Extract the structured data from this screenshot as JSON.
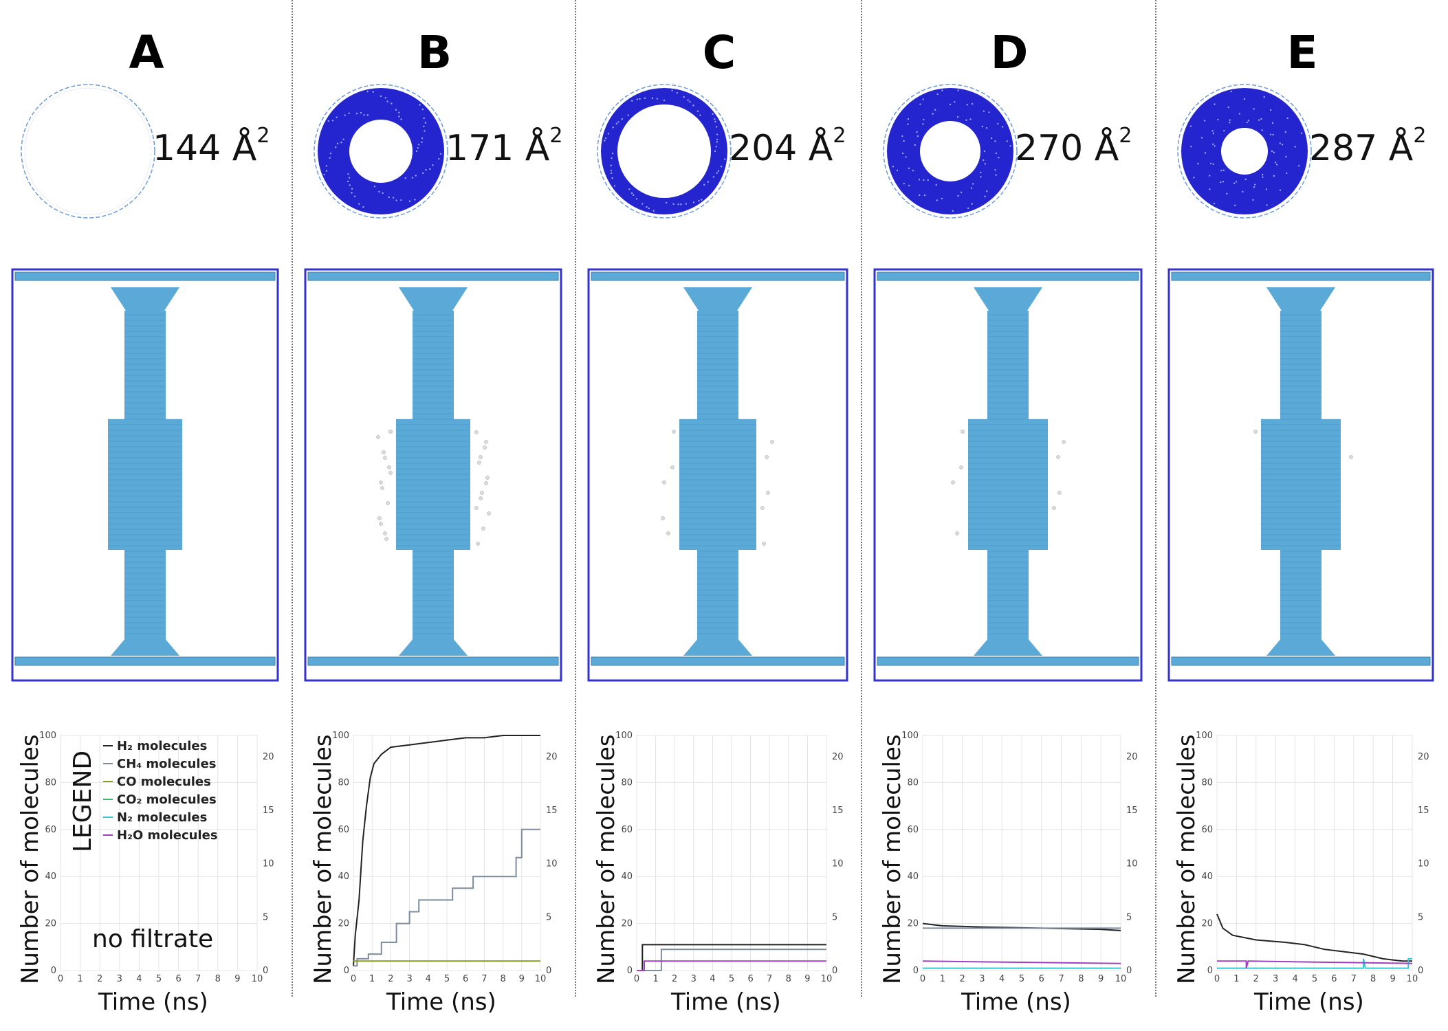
{
  "panels": [
    {
      "letter": "A",
      "area": "144 Å",
      "area_sup": "2"
    },
    {
      "letter": "B",
      "area": "171 Å",
      "area_sup": "2"
    },
    {
      "letter": "C",
      "area": "204 Å",
      "area_sup": "2"
    },
    {
      "letter": "D",
      "area": "270 Å",
      "area_sup": "2"
    },
    {
      "letter": "E",
      "area": "287 Å",
      "area_sup": "2"
    }
  ],
  "axes": {
    "ylabel": "Number of molecules",
    "xlabel": "Time (ns)",
    "left_ticks": [
      "0",
      "20",
      "40",
      "60",
      "80",
      "100"
    ],
    "right_ticks": [
      "0",
      "5",
      "10",
      "15",
      "20"
    ],
    "x_ticks": [
      "0",
      "1",
      "2",
      "3",
      "4",
      "5",
      "6",
      "7",
      "8",
      "9",
      "10"
    ]
  },
  "legend": {
    "title": "LEGEND",
    "items": [
      {
        "label": "H₂ molecules",
        "color": "#222222"
      },
      {
        "label": "CH₄ molecules",
        "color": "#7f8c9d"
      },
      {
        "label": "CO molecules",
        "color": "#8a9a1a"
      },
      {
        "label": "CO₂ molecules",
        "color": "#3bb86a"
      },
      {
        "label": "N₂ molecules",
        "color": "#35c6d6"
      },
      {
        "label": "H₂O molecules",
        "color": "#a040c0"
      }
    ]
  },
  "annotation": "no filtrate",
  "colors": {
    "membrane": "#2525d0",
    "tube": "#5aa9d6",
    "box": "#3333cc"
  },
  "chart_data": [
    {
      "type": "line",
      "panel": "A",
      "xlim": [
        0,
        10
      ],
      "ylim": [
        0,
        100
      ],
      "y2lim": [
        0,
        22
      ],
      "series": []
    },
    {
      "type": "line",
      "panel": "B",
      "xlim": [
        0,
        10
      ],
      "ylim": [
        0,
        100
      ],
      "y2lim": [
        0,
        22
      ],
      "series": [
        {
          "name": "H₂ molecules",
          "points": [
            [
              0,
              2
            ],
            [
              0.1,
              15
            ],
            [
              0.3,
              30
            ],
            [
              0.5,
              55
            ],
            [
              0.7,
              70
            ],
            [
              0.9,
              82
            ],
            [
              1.1,
              88
            ],
            [
              1.5,
              92
            ],
            [
              2,
              95
            ],
            [
              3,
              96
            ],
            [
              4,
              97
            ],
            [
              5,
              98
            ],
            [
              6,
              99
            ],
            [
              7,
              99
            ],
            [
              8,
              100
            ],
            [
              10,
              100
            ]
          ]
        },
        {
          "name": "CH₄ molecules",
          "points": [
            [
              0,
              2
            ],
            [
              0.2,
              2
            ],
            [
              0.2,
              5
            ],
            [
              0.8,
              5
            ],
            [
              0.8,
              7
            ],
            [
              1.5,
              7
            ],
            [
              1.5,
              12
            ],
            [
              2.3,
              12
            ],
            [
              2.3,
              20
            ],
            [
              3,
              20
            ],
            [
              3,
              25
            ],
            [
              3.5,
              25
            ],
            [
              3.5,
              30
            ],
            [
              5.3,
              30
            ],
            [
              5.3,
              35
            ],
            [
              6.4,
              35
            ],
            [
              6.4,
              40
            ],
            [
              8.7,
              40
            ],
            [
              8.7,
              48
            ],
            [
              9,
              48
            ],
            [
              9,
              60
            ],
            [
              10,
              60
            ]
          ]
        },
        {
          "name": "CO molecules",
          "points": [
            [
              0,
              4
            ],
            [
              10,
              4
            ]
          ]
        }
      ]
    },
    {
      "type": "line",
      "panel": "C",
      "xlim": [
        0,
        10
      ],
      "ylim": [
        0,
        100
      ],
      "y2lim": [
        0,
        22
      ],
      "series": [
        {
          "name": "H₂ molecules",
          "points": [
            [
              0,
              0
            ],
            [
              0.3,
              0
            ],
            [
              0.3,
              11
            ],
            [
              10,
              11
            ]
          ]
        },
        {
          "name": "CH₄ molecules",
          "points": [
            [
              0,
              0
            ],
            [
              1.3,
              0
            ],
            [
              1.3,
              9
            ],
            [
              10,
              9
            ]
          ]
        },
        {
          "name": "H₂O molecules",
          "points": [
            [
              0,
              0
            ],
            [
              0.4,
              0
            ],
            [
              0.4,
              4
            ],
            [
              10,
              4
            ]
          ]
        }
      ]
    },
    {
      "type": "line",
      "panel": "D",
      "xlim": [
        0,
        10
      ],
      "ylim": [
        0,
        100
      ],
      "y2lim": [
        0,
        22
      ],
      "series": [
        {
          "name": "H₂ molecules",
          "points": [
            [
              0,
              20
            ],
            [
              1,
              19
            ],
            [
              3,
              18.5
            ],
            [
              6,
              18
            ],
            [
              9,
              17.5
            ],
            [
              10,
              17
            ]
          ]
        },
        {
          "name": "CH₄ molecules",
          "points": [
            [
              0,
              18
            ],
            [
              10,
              18
            ]
          ]
        },
        {
          "name": "N₂ molecules",
          "points": [
            [
              0,
              1
            ],
            [
              10,
              1
            ]
          ]
        },
        {
          "name": "H₂O molecules",
          "points": [
            [
              0,
              4
            ],
            [
              10,
              3
            ]
          ]
        }
      ]
    },
    {
      "type": "line",
      "panel": "E",
      "xlim": [
        0,
        10
      ],
      "ylim": [
        0,
        100
      ],
      "y2lim": [
        0,
        22
      ],
      "series": [
        {
          "name": "H₂ molecules",
          "points": [
            [
              0,
              24
            ],
            [
              0.3,
              18
            ],
            [
              0.8,
              15
            ],
            [
              2,
              13
            ],
            [
              3.5,
              12
            ],
            [
              4.5,
              11
            ],
            [
              5.5,
              9
            ],
            [
              6.5,
              8
            ],
            [
              7.5,
              7
            ],
            [
              8.5,
              5
            ],
            [
              9.5,
              4
            ],
            [
              10,
              4
            ]
          ]
        },
        {
          "name": "N₂ molecules",
          "points": [
            [
              0,
              1
            ],
            [
              7.5,
              1
            ],
            [
              7.5,
              5
            ],
            [
              7.6,
              1
            ],
            [
              9.8,
              1
            ],
            [
              9.8,
              5
            ],
            [
              10,
              5
            ]
          ]
        },
        {
          "name": "H₂O molecules",
          "points": [
            [
              0,
              4
            ],
            [
              1.5,
              4
            ],
            [
              1.5,
              1
            ],
            [
              1.6,
              4
            ],
            [
              10,
              3
            ]
          ]
        }
      ]
    }
  ]
}
